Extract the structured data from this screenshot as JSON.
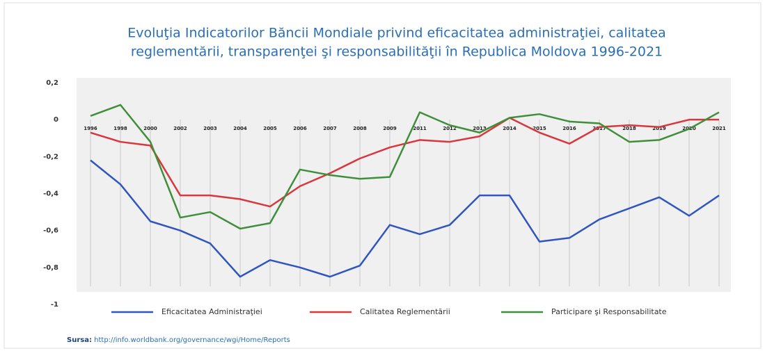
{
  "chart_data": {
    "type": "line",
    "title": [
      "Evoluţia Indicatorilor Băncii Mondiale privind eficacitatea administraţiei, calitatea",
      "reglementării, transparenţei şi responsabilităţii în Republica Moldova 1996-2021"
    ],
    "categories": [
      "1996",
      "1998",
      "2000",
      "2002",
      "2003",
      "2004",
      "2005",
      "2006",
      "2007",
      "2008",
      "2009",
      "2011",
      "2012",
      "2013",
      "2014",
      "2015",
      "2016",
      "2017",
      "2018",
      "2019",
      "2020",
      "2021"
    ],
    "series": [
      {
        "name": "Eficacitatea Administraţiei",
        "color": "#2f55c0",
        "values": [
          -0.22,
          -0.35,
          -0.55,
          -0.6,
          -0.67,
          -0.85,
          -0.76,
          -0.8,
          -0.85,
          -0.79,
          -0.57,
          -0.62,
          -0.57,
          -0.41,
          -0.41,
          -0.66,
          -0.64,
          -0.54,
          -0.48,
          -0.42,
          -0.52,
          -0.41
        ]
      },
      {
        "name": "Calitatea Reglementării",
        "color": "#d9363e",
        "values": [
          -0.07,
          -0.12,
          -0.14,
          -0.41,
          -0.41,
          -0.43,
          -0.47,
          -0.36,
          -0.29,
          -0.21,
          -0.15,
          -0.11,
          -0.12,
          -0.09,
          0.01,
          -0.07,
          -0.13,
          -0.04,
          -0.03,
          -0.04,
          0.0,
          0.0
        ]
      },
      {
        "name": "Participare şi Responsabilitate",
        "color": "#3f8f3a",
        "values": [
          0.02,
          0.08,
          -0.12,
          -0.53,
          -0.5,
          -0.59,
          -0.56,
          -0.27,
          -0.3,
          -0.32,
          -0.31,
          0.04,
          -0.03,
          -0.07,
          0.01,
          0.03,
          -0.01,
          -0.02,
          -0.12,
          -0.11,
          -0.05,
          0.04
        ]
      }
    ],
    "ylim": [
      -1,
      0.2
    ],
    "yticks": [
      {
        "value": 0.2,
        "label": "0,2"
      },
      0,
      {
        "value": -0.2,
        "label": "-0,2"
      },
      {
        "value": -0.4,
        "label": "-0,4"
      },
      {
        "value": -0.6,
        "label": "-0,6"
      },
      {
        "value": -0.8,
        "label": "-0,8"
      },
      -1
    ],
    "source_label": "Sursa:",
    "source_url": "http://info.worldbank.org/governance/wgi/Home/Reports"
  }
}
